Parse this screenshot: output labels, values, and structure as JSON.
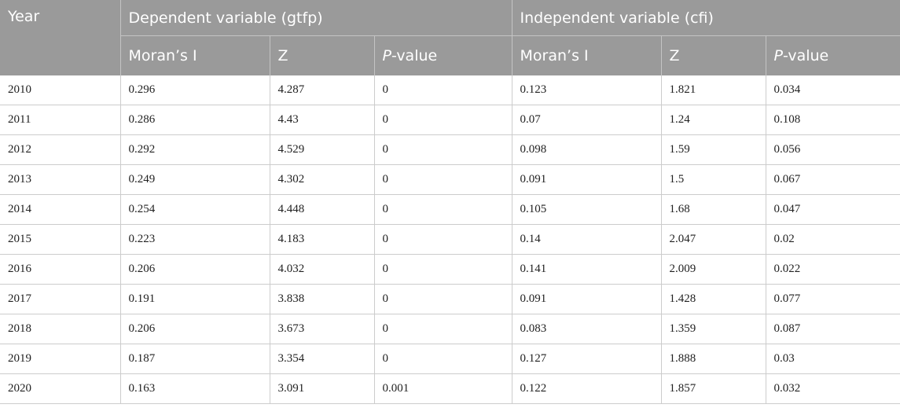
{
  "header": {
    "year": "Year",
    "dependent_group": "Dependent variable (gtfp)",
    "independent_group": "Independent variable (cfi)",
    "morans_i": "Moran’s I",
    "z": "Z",
    "p_prefix": "P",
    "p_suffix": "-value"
  },
  "rows": [
    [
      "2010",
      "0.296",
      "4.287",
      "0",
      "0.123",
      "1.821",
      "0.034"
    ],
    [
      "2011",
      "0.286",
      "4.43",
      "0",
      "0.07",
      "1.24",
      "0.108"
    ],
    [
      "2012",
      "0.292",
      "4.529",
      "0",
      "0.098",
      "1.59",
      "0.056"
    ],
    [
      "2013",
      "0.249",
      "4.302",
      "0",
      "0.091",
      "1.5",
      "0.067"
    ],
    [
      "2014",
      "0.254",
      "4.448",
      "0",
      "0.105",
      "1.68",
      "0.047"
    ],
    [
      "2015",
      "0.223",
      "4.183",
      "0",
      "0.14",
      "2.047",
      "0.02"
    ],
    [
      "2016",
      "0.206",
      "4.032",
      "0",
      "0.141",
      "2.009",
      "0.022"
    ],
    [
      "2017",
      "0.191",
      "3.838",
      "0",
      "0.091",
      "1.428",
      "0.077"
    ],
    [
      "2018",
      "0.206",
      "3.673",
      "0",
      "0.083",
      "1.359",
      "0.087"
    ],
    [
      "2019",
      "0.187",
      "3.354",
      "0",
      "0.127",
      "1.888",
      "0.03"
    ],
    [
      "2020",
      "0.163",
      "3.091",
      "0.001",
      "0.122",
      "1.857",
      "0.032"
    ]
  ]
}
